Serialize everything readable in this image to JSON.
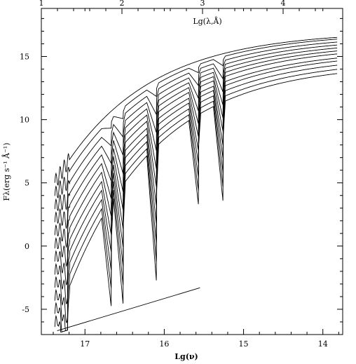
{
  "chart_data": {
    "type": "line",
    "xlabel": "Lg(ν)",
    "ylabel": "Fλ(erg s⁻¹ Å⁻¹)",
    "top_axis_label": "Lg(λ,Å)",
    "x_reversed": true,
    "xlim": [
      17.55,
      13.75
    ],
    "ylim": [
      -7.0,
      18.8
    ],
    "x_ticks": [
      17,
      16,
      15,
      14
    ],
    "x_tick_labels": [
      "17",
      "16",
      "15",
      "14"
    ],
    "y_ticks": [
      -5,
      0,
      5,
      10,
      15
    ],
    "y_tick_labels": [
      "-5",
      "0",
      "5",
      "10",
      "15"
    ],
    "top_ticks": [
      1,
      2,
      3,
      4
    ],
    "top_tick_labels": [
      "1",
      "2",
      "3",
      "4"
    ],
    "grid": false,
    "legend": "none",
    "cutoff_frequencies": [
      17.22,
      16.67,
      16.52,
      16.1,
      15.57,
      15.26
    ],
    "lower_envelope": {
      "x": [
        17.35,
        15.55
      ],
      "y": [
        -6.7,
        -3.3
      ]
    },
    "series": [
      {
        "plateau": 14.5
      },
      {
        "plateau": 14.8
      },
      {
        "plateau": 15.1
      },
      {
        "plateau": 15.4
      },
      {
        "plateau": 15.6
      },
      {
        "plateau": 15.9
      },
      {
        "plateau": 16.1
      },
      {
        "plateau": 16.3
      },
      {
        "plateau": 16.5
      },
      {
        "plateau": 16.7
      },
      {
        "plateau": 16.9
      },
      {
        "plateau": 17.0
      }
    ]
  }
}
